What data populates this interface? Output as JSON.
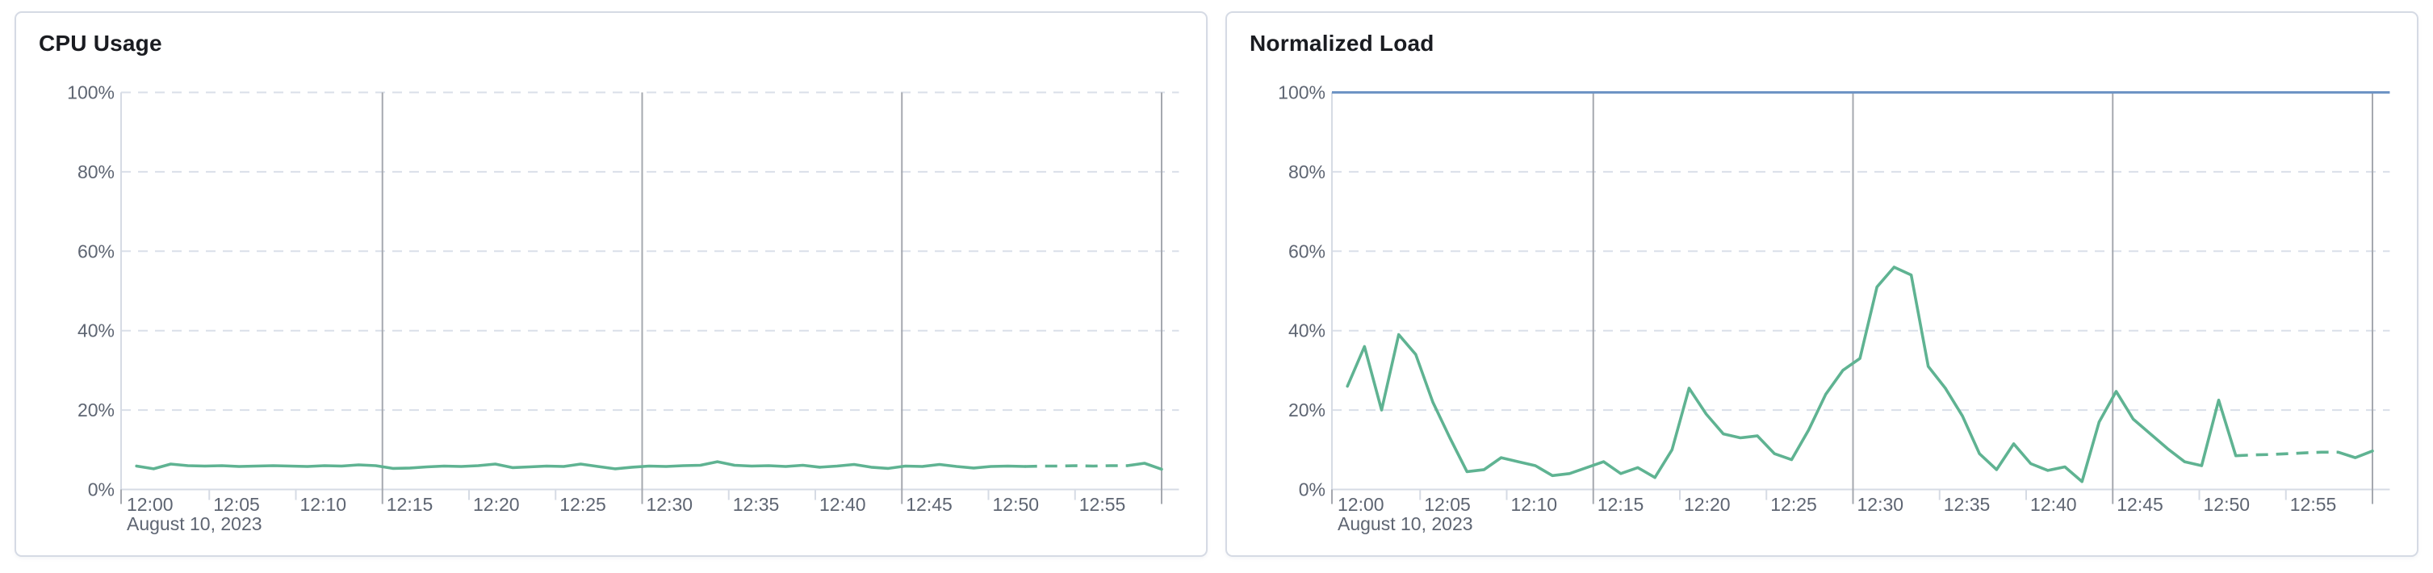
{
  "colors": {
    "series_line": "#5FB392",
    "threshold_line": "#6E94C4",
    "grid_minor_dashed": "#DADFE9",
    "grid_major_solid": "#A5A8AF",
    "axis_line": "#D6DBE4",
    "axis_label": "#5E6572",
    "panel_border": "#D5DAE4",
    "panel_background": "#FFFFFF",
    "title_color": "#1A1C21"
  },
  "chart_data": [
    {
      "type": "line",
      "title": "CPU Usage",
      "date_label": "August 10, 2023",
      "x_start_time": "12:00",
      "x_end_time": "13:00",
      "x_point_interval_minutes": 1,
      "x_tick_labels": [
        "12:00",
        "12:05",
        "12:10",
        "12:15",
        "12:20",
        "12:25",
        "12:30",
        "12:35",
        "12:40",
        "12:45",
        "12:50",
        "12:55"
      ],
      "y_tick_labels": [
        "0%",
        "20%",
        "40%",
        "60%",
        "80%",
        "100%"
      ],
      "ylim": [
        0,
        100
      ],
      "grid": true,
      "legend": "none",
      "major_gridline_minutes": [
        15,
        30,
        45,
        60
      ],
      "threshold": null,
      "series": [
        {
          "name": "cpu-usage",
          "dashed_segment_minutes": [
            52,
            58
          ],
          "values": [
            5.9,
            5.2,
            6.4,
            6.0,
            5.9,
            6.0,
            5.8,
            5.9,
            6.0,
            5.9,
            5.8,
            6.0,
            5.9,
            6.2,
            6.0,
            5.3,
            5.4,
            5.7,
            5.9,
            5.8,
            6.0,
            6.4,
            5.5,
            5.7,
            5.9,
            5.8,
            6.4,
            5.8,
            5.2,
            5.6,
            5.9,
            5.8,
            6.0,
            6.1,
            7.0,
            6.1,
            5.9,
            6.0,
            5.8,
            6.1,
            5.6,
            5.9,
            6.3,
            5.6,
            5.3,
            5.9,
            5.8,
            6.3,
            5.8,
            5.4,
            5.8,
            5.9,
            5.8,
            5.9,
            5.9,
            6.0,
            5.9,
            6.0,
            6.0,
            6.6,
            5.1
          ]
        }
      ]
    },
    {
      "type": "line",
      "title": "Normalized Load",
      "date_label": "August 10, 2023",
      "x_start_time": "12:00",
      "x_end_time": "13:00",
      "x_point_interval_minutes": 1,
      "x_tick_labels": [
        "12:00",
        "12:05",
        "12:10",
        "12:15",
        "12:20",
        "12:25",
        "12:30",
        "12:35",
        "12:40",
        "12:45",
        "12:50",
        "12:55"
      ],
      "y_tick_labels": [
        "0%",
        "20%",
        "40%",
        "60%",
        "80%",
        "100%"
      ],
      "ylim": [
        0,
        100
      ],
      "grid": true,
      "legend": "none",
      "major_gridline_minutes": [
        15,
        30,
        45,
        60
      ],
      "threshold": {
        "value": 100
      },
      "series": [
        {
          "name": "normalized-load",
          "dashed_segment_minutes": [
            52,
            58
          ],
          "values": [
            26,
            36,
            20,
            39,
            34,
            22,
            13,
            4.5,
            5,
            8,
            7,
            6,
            3.5,
            4,
            5.5,
            7,
            4,
            5.5,
            3,
            10,
            25.5,
            19,
            14,
            13,
            13.5,
            9,
            7.5,
            15,
            24,
            30,
            33,
            51,
            56,
            54,
            31,
            25.5,
            18.5,
            9,
            5,
            11.5,
            6.5,
            4.8,
            5.7,
            2,
            17,
            24.7,
            17.7,
            14,
            10.3,
            7,
            6,
            22.5,
            8.5,
            8.7,
            8.8,
            9,
            9.2,
            9.4,
            9.4,
            8,
            9.7
          ]
        }
      ]
    }
  ]
}
